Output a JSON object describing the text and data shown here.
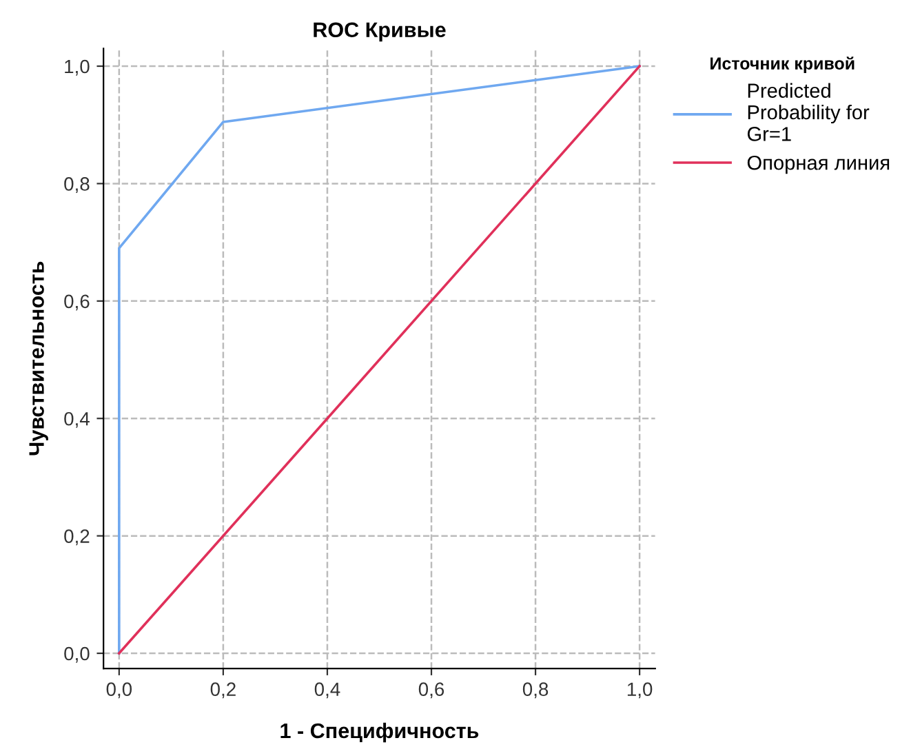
{
  "chart_data": {
    "type": "line",
    "title": "ROC Кривые",
    "xlabel": "1 - Специфичность",
    "ylabel": "Чувствительность",
    "legend_title": "Источник кривой",
    "legend": "top right",
    "grid": true,
    "marker": "none",
    "line_style": "solid",
    "xlim": [
      -0.03,
      1.03
    ],
    "ylim": [
      -0.026,
      1.03
    ],
    "xticks": [
      {
        "value": 0,
        "label": "0,0"
      },
      {
        "value": 0.2,
        "label": "0,2"
      },
      {
        "value": 0.4,
        "label": "0,4"
      },
      {
        "value": 0.6,
        "label": "0,6"
      },
      {
        "value": 0.8,
        "label": "0,8"
      },
      {
        "value": 1,
        "label": "1,0"
      }
    ],
    "yticks": [
      {
        "value": 0,
        "label": "0,0"
      },
      {
        "value": 0.2,
        "label": "0,2"
      },
      {
        "value": 0.4,
        "label": "0,4"
      },
      {
        "value": 0.6,
        "label": "0,6"
      },
      {
        "value": 0.8,
        "label": "0,8"
      },
      {
        "value": 1,
        "label": "1,0"
      }
    ],
    "series": [
      {
        "name": "Predicted Probability for Gr=1",
        "color": "#6fa8f0",
        "x": [
          0,
          0,
          0.2,
          1
        ],
        "values": [
          0,
          0.69,
          0.905,
          1
        ]
      },
      {
        "name": "Опорная линия",
        "color": "#e0305a",
        "x": [
          0,
          1
        ],
        "values": [
          0,
          1
        ]
      }
    ]
  }
}
